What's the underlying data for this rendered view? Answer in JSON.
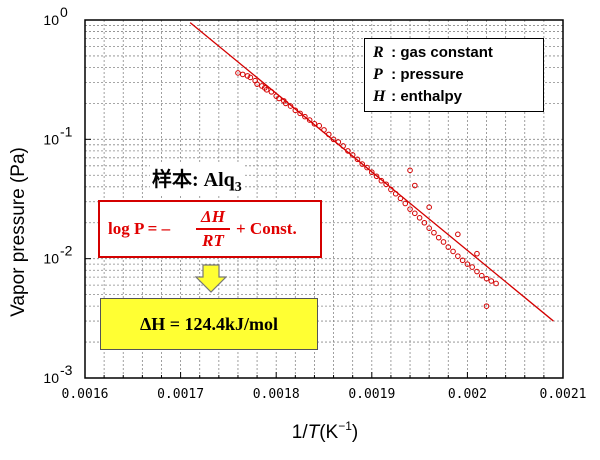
{
  "chart_data": {
    "type": "scatter",
    "xlabel": "1/T(K⁻¹)",
    "ylabel": "Vapor pressure (Pa)",
    "x_ticks": [
      "0.0016",
      "0.0017",
      "0.0018",
      "0.0019",
      "0.002",
      "0.0021"
    ],
    "y_ticks": [
      {
        "base": "10",
        "exp": "0"
      },
      {
        "base": "10",
        "exp": "-1"
      },
      {
        "base": "10",
        "exp": "-2"
      },
      {
        "base": "10",
        "exp": "-3"
      }
    ],
    "xlim": [
      0.0016,
      0.0021
    ],
    "ylim": [
      0.001,
      1
    ],
    "y_scale": "log",
    "grid": "dashed, major and minor",
    "series": [
      {
        "kind": "points",
        "marker": "open circle",
        "color": "#d40000",
        "x": [
          0.00176,
          0.001765,
          0.00177,
          0.001773,
          0.001778,
          0.00178,
          0.001785,
          0.001788,
          0.00179,
          0.001795,
          0.0018,
          0.001803,
          0.001808,
          0.00181,
          0.001815,
          0.00182,
          0.001825,
          0.00183,
          0.001835,
          0.00184,
          0.001845,
          0.00185,
          0.001855,
          0.00186,
          0.001865,
          0.00187,
          0.001875,
          0.00188,
          0.001885,
          0.00189,
          0.001895,
          0.0019,
          0.001905,
          0.00191,
          0.001915,
          0.00192,
          0.001925,
          0.00193,
          0.001935,
          0.00194,
          0.001945,
          0.00195,
          0.001955,
          0.00196,
          0.001965,
          0.00197,
          0.001975,
          0.00198,
          0.001985,
          0.00199,
          0.001995,
          0.002,
          0.002005,
          0.00201,
          0.002015,
          0.00202,
          0.002025,
          0.00203,
          0.001945,
          0.00194,
          0.00196,
          0.00199,
          0.00201,
          0.00202
        ],
        "y": [
          0.36,
          0.35,
          0.34,
          0.33,
          0.31,
          0.29,
          0.28,
          0.27,
          0.26,
          0.25,
          0.23,
          0.22,
          0.21,
          0.2,
          0.19,
          0.175,
          0.165,
          0.155,
          0.145,
          0.135,
          0.13,
          0.12,
          0.11,
          0.1,
          0.095,
          0.088,
          0.08,
          0.074,
          0.068,
          0.062,
          0.058,
          0.053,
          0.049,
          0.045,
          0.042,
          0.038,
          0.035,
          0.032,
          0.029,
          0.026,
          0.024,
          0.022,
          0.02,
          0.018,
          0.0165,
          0.015,
          0.0138,
          0.0125,
          0.0115,
          0.0105,
          0.0097,
          0.009,
          0.0085,
          0.0078,
          0.0072,
          0.0068,
          0.0065,
          0.0062,
          0.041,
          0.055,
          0.027,
          0.016,
          0.011,
          0.004
        ]
      },
      {
        "kind": "fit line",
        "color": "#d40000",
        "x": [
          0.00171,
          0.00209
        ],
        "y": [
          0.95,
          0.003
        ]
      }
    ],
    "legend": [
      {
        "symbol": "R",
        "text": ": gas constant"
      },
      {
        "symbol": "P",
        "text": ": pressure"
      },
      {
        "symbol": "H",
        "text": ": enthalpy"
      }
    ],
    "legend_placement": "top-right",
    "annotations": {
      "sample_label": "样本: Alq",
      "sample_subscript": "3",
      "equation": {
        "lhs": "log P = –",
        "numerator": "ΔH",
        "denominator": "RT",
        "rhs": "+ Const."
      },
      "result": "ΔH = 124.4kJ/mol"
    }
  },
  "colors": {
    "data": "#d40000",
    "equation_text": "#e00000",
    "result_box": "#ffff33",
    "grid": "#888888"
  }
}
